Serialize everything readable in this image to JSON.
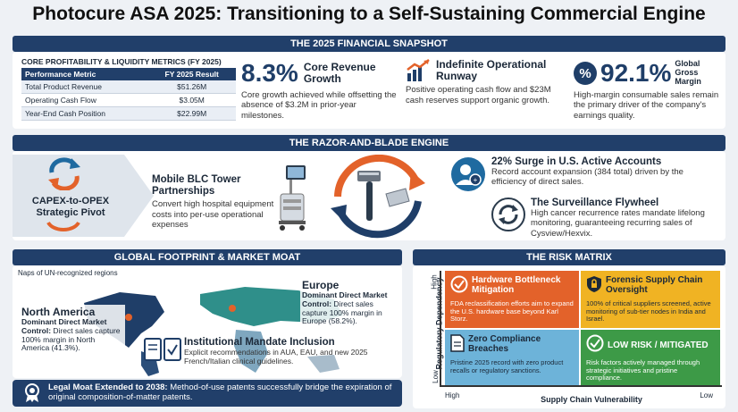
{
  "title": "Photocure ASA 2025: Transitioning to a Self-Sustaining Commercial Engine",
  "snapshot": {
    "band": "THE 2025 FINANCIAL SNAPSHOT",
    "table_title": "CORE PROFITABILITY & LIQUIDITY METRICS (FY 2025)",
    "col1": "Performance Metric",
    "col2": "FY 2025 Result",
    "rows": [
      {
        "metric": "Total Product Revenue",
        "value": "$51.26M"
      },
      {
        "metric": "Operating Cash Flow",
        "value": "$3.05M"
      },
      {
        "metric": "Year-End Cash Position",
        "value": "$22.99M"
      }
    ],
    "kpi1": {
      "value": "8.3%",
      "label": "Core Revenue Growth",
      "desc": "Core growth achieved while offsetting the absence of $3.2M in prior-year milestones."
    },
    "kpi2": {
      "label": "Indefinite Operational Runway",
      "desc": "Positive operating cash flow and $23M cash reserves support organic growth."
    },
    "kpi3": {
      "icon_text": "%",
      "value": "92.1%",
      "label": "Global Gross Margin",
      "desc": "High-margin consumable sales remain the primary driver of the company's earnings quality."
    }
  },
  "engine": {
    "band": "THE RAZOR-AND-BLADE ENGINE",
    "pivot": "CAPEX-to-OPEX Strategic Pivot",
    "tower_title": "Mobile BLC Tower Partnerships",
    "tower_desc": "Convert high hospital equipment costs into per-use operational expenses",
    "surge_title": "22% Surge in U.S. Active Accounts",
    "surge_desc": "Record account expansion (384 total) driven by the efficiency of direct sales.",
    "flywheel_title": "The Surveillance Flywheel",
    "flywheel_desc": "High cancer recurrence rates mandate lifelong monitoring, guaranteeing recurring sales of Cysview/Hexvix."
  },
  "footprint": {
    "band": "GLOBAL FOOTPRINT & MARKET MOAT",
    "map_note": "Naps of UN-recognized regions",
    "na_title": "North America",
    "na_desc_bold": "Dominant Direct Market Control:",
    "na_desc": "Direct sales capture 100% margin in North America (41.3%).",
    "eu_title": "Europe",
    "eu_desc_bold": "Dominant Direct Market Control:",
    "eu_desc": "Direct sales capture 100% margin in Europe (58.2%).",
    "inst_title": "Institutional Mandate Inclusion",
    "inst_desc": "Explicit recommendations in AUA, EAU, and new 2025 French/Italian clinical guidelines.",
    "moat_bold": "Legal Moat Extended to 2038:",
    "moat_desc": "Method-of-use patents successfully bridge the expiration of original composition-of-matter patents."
  },
  "risk": {
    "band": "THE RISK MATRIX",
    "y_axis": "Regulatory Dependency",
    "y_high": "High",
    "y_low": "Low",
    "x_axis": "Supply Chain Vulnerability",
    "x_high": "High",
    "x_low": "Low",
    "cells": [
      {
        "title": "Hardware Bottleneck Mitigation",
        "desc": "FDA reclassification efforts aim to expand the U.S. hardware base beyond Karl Storz.",
        "color": "#e3622a"
      },
      {
        "title": "Forensic Supply Chain Oversight",
        "desc": "100% of critical suppliers screened, active monitoring of sub-tier nodes in India and Israel.",
        "color": "#f0b323"
      },
      {
        "title": "Zero Compliance Breaches",
        "desc": "Pristine 2025 record with zero product recalls or regulatory sanctions.",
        "color": "#6db3d9"
      },
      {
        "title": "LOW RISK / MITIGATED",
        "desc": "Risk factors actively managed through strategic initiatives and pristine compliance.",
        "color": "#3d9a47"
      }
    ]
  }
}
